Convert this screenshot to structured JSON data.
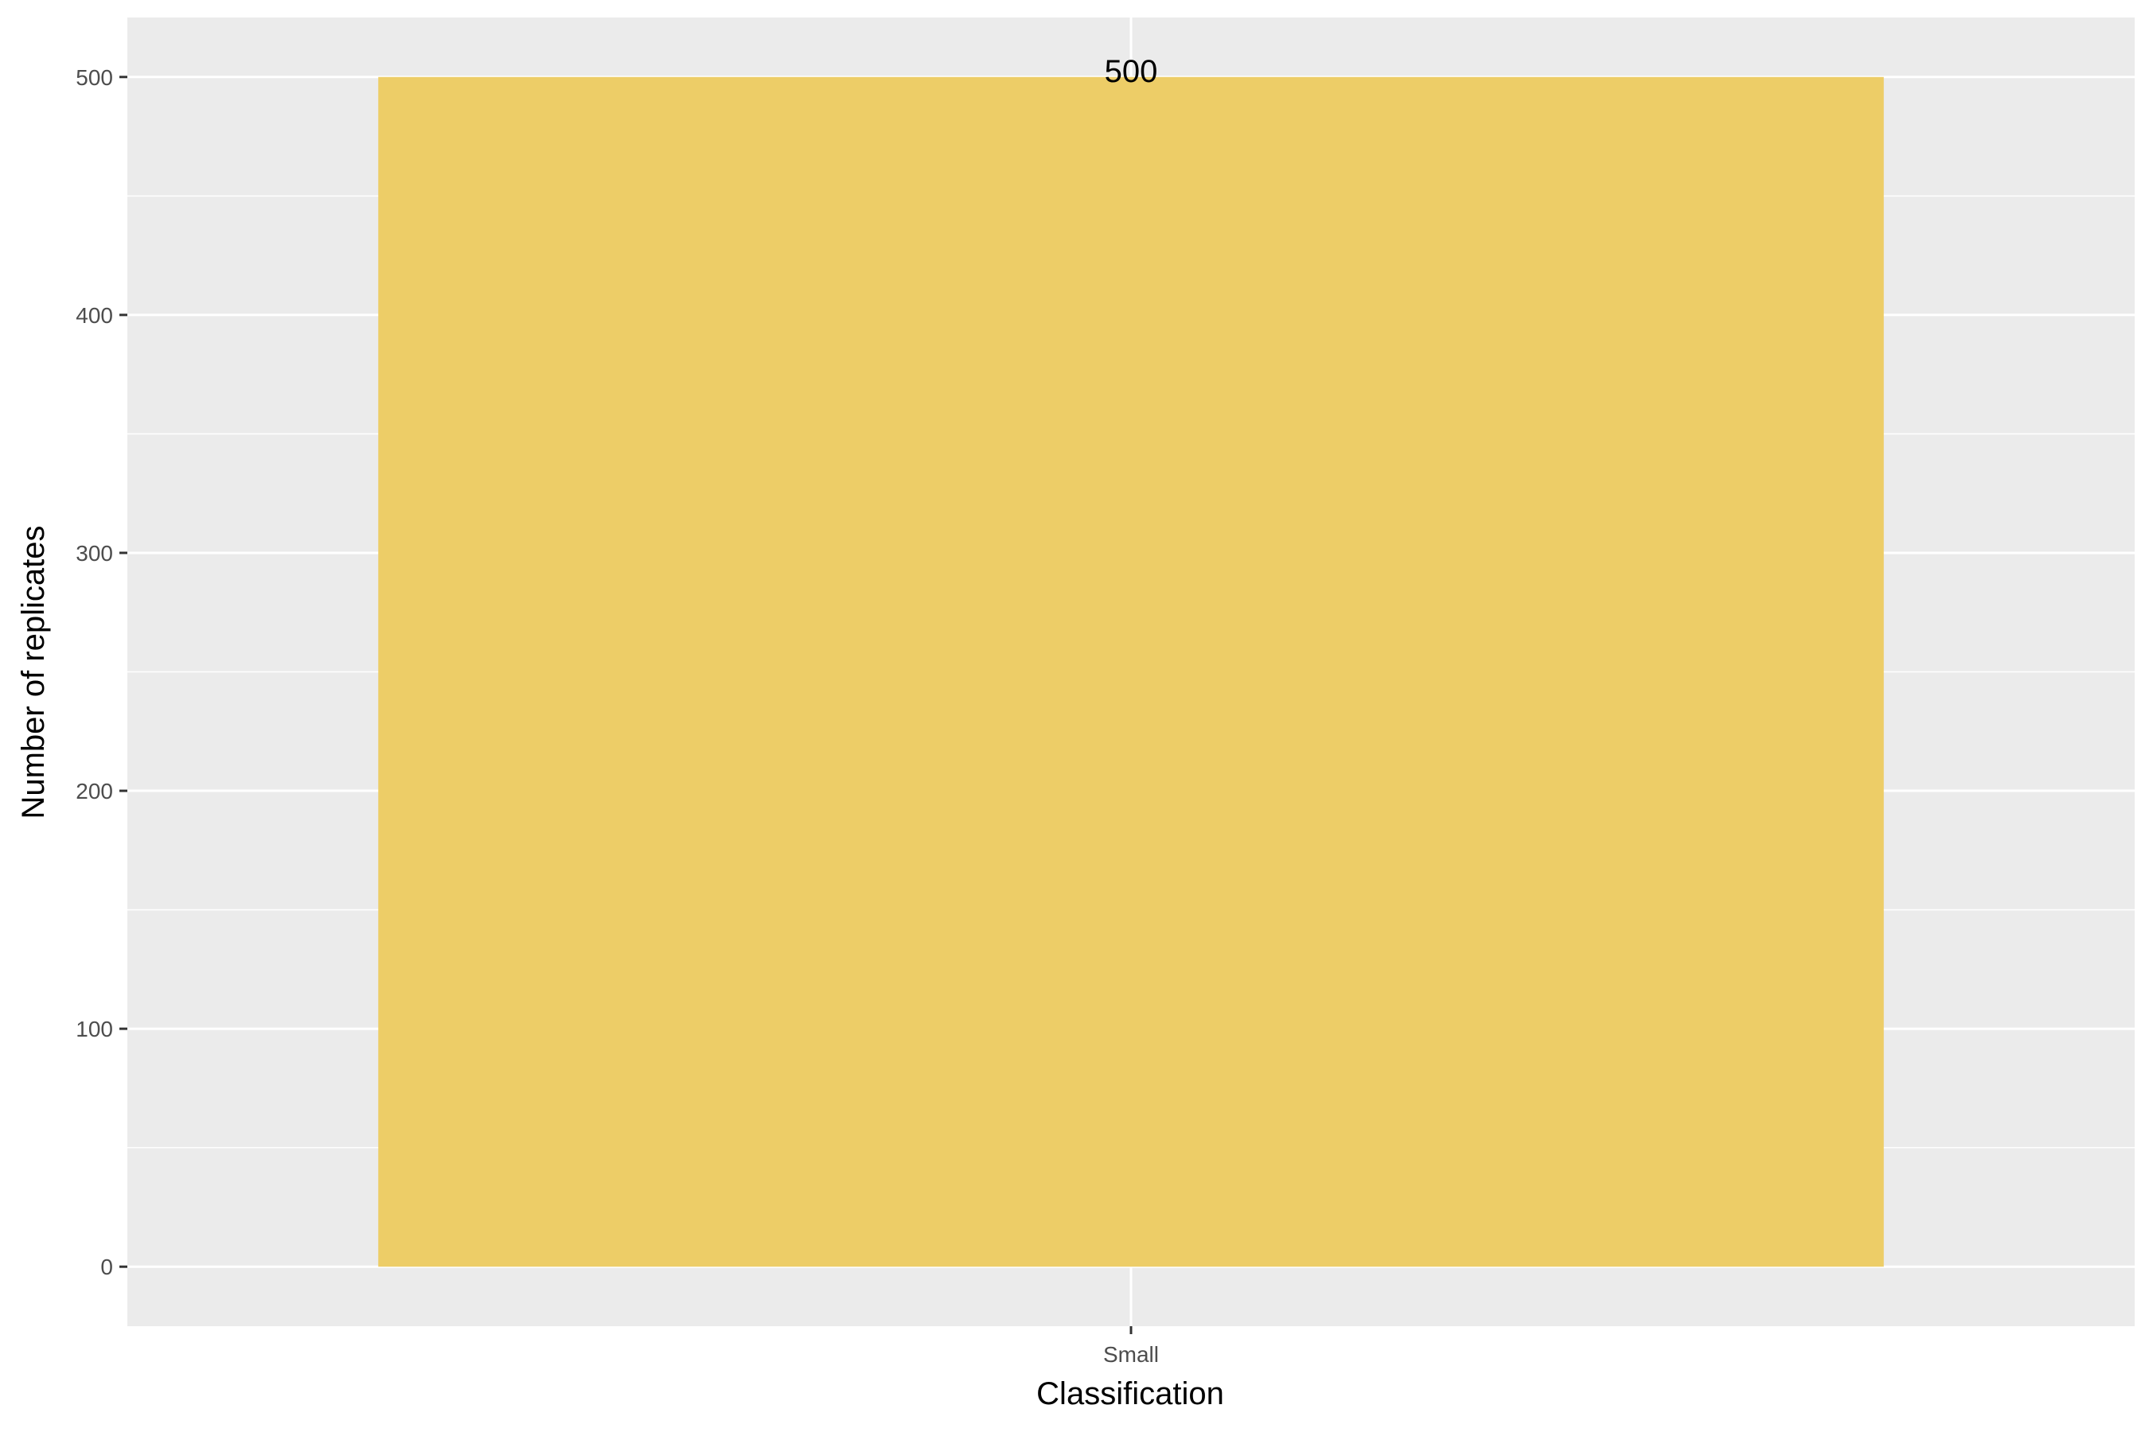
{
  "chart_data": {
    "type": "bar",
    "categories": [
      "Small"
    ],
    "values": [
      500
    ],
    "data_labels": [
      "500"
    ],
    "xlabel": "Classification",
    "ylabel": "Number of replicates",
    "ylim": [
      -25,
      525
    ],
    "yticks": [
      0,
      100,
      200,
      300,
      400,
      500
    ],
    "ytick_labels": [
      "0",
      "100",
      "200",
      "300",
      "400",
      "500"
    ],
    "grid": true,
    "legend": "none",
    "colors": {
      "bar": "#edcd67",
      "panel": "#ebebeb",
      "grid": "#ffffff",
      "tick": "#333333"
    }
  }
}
